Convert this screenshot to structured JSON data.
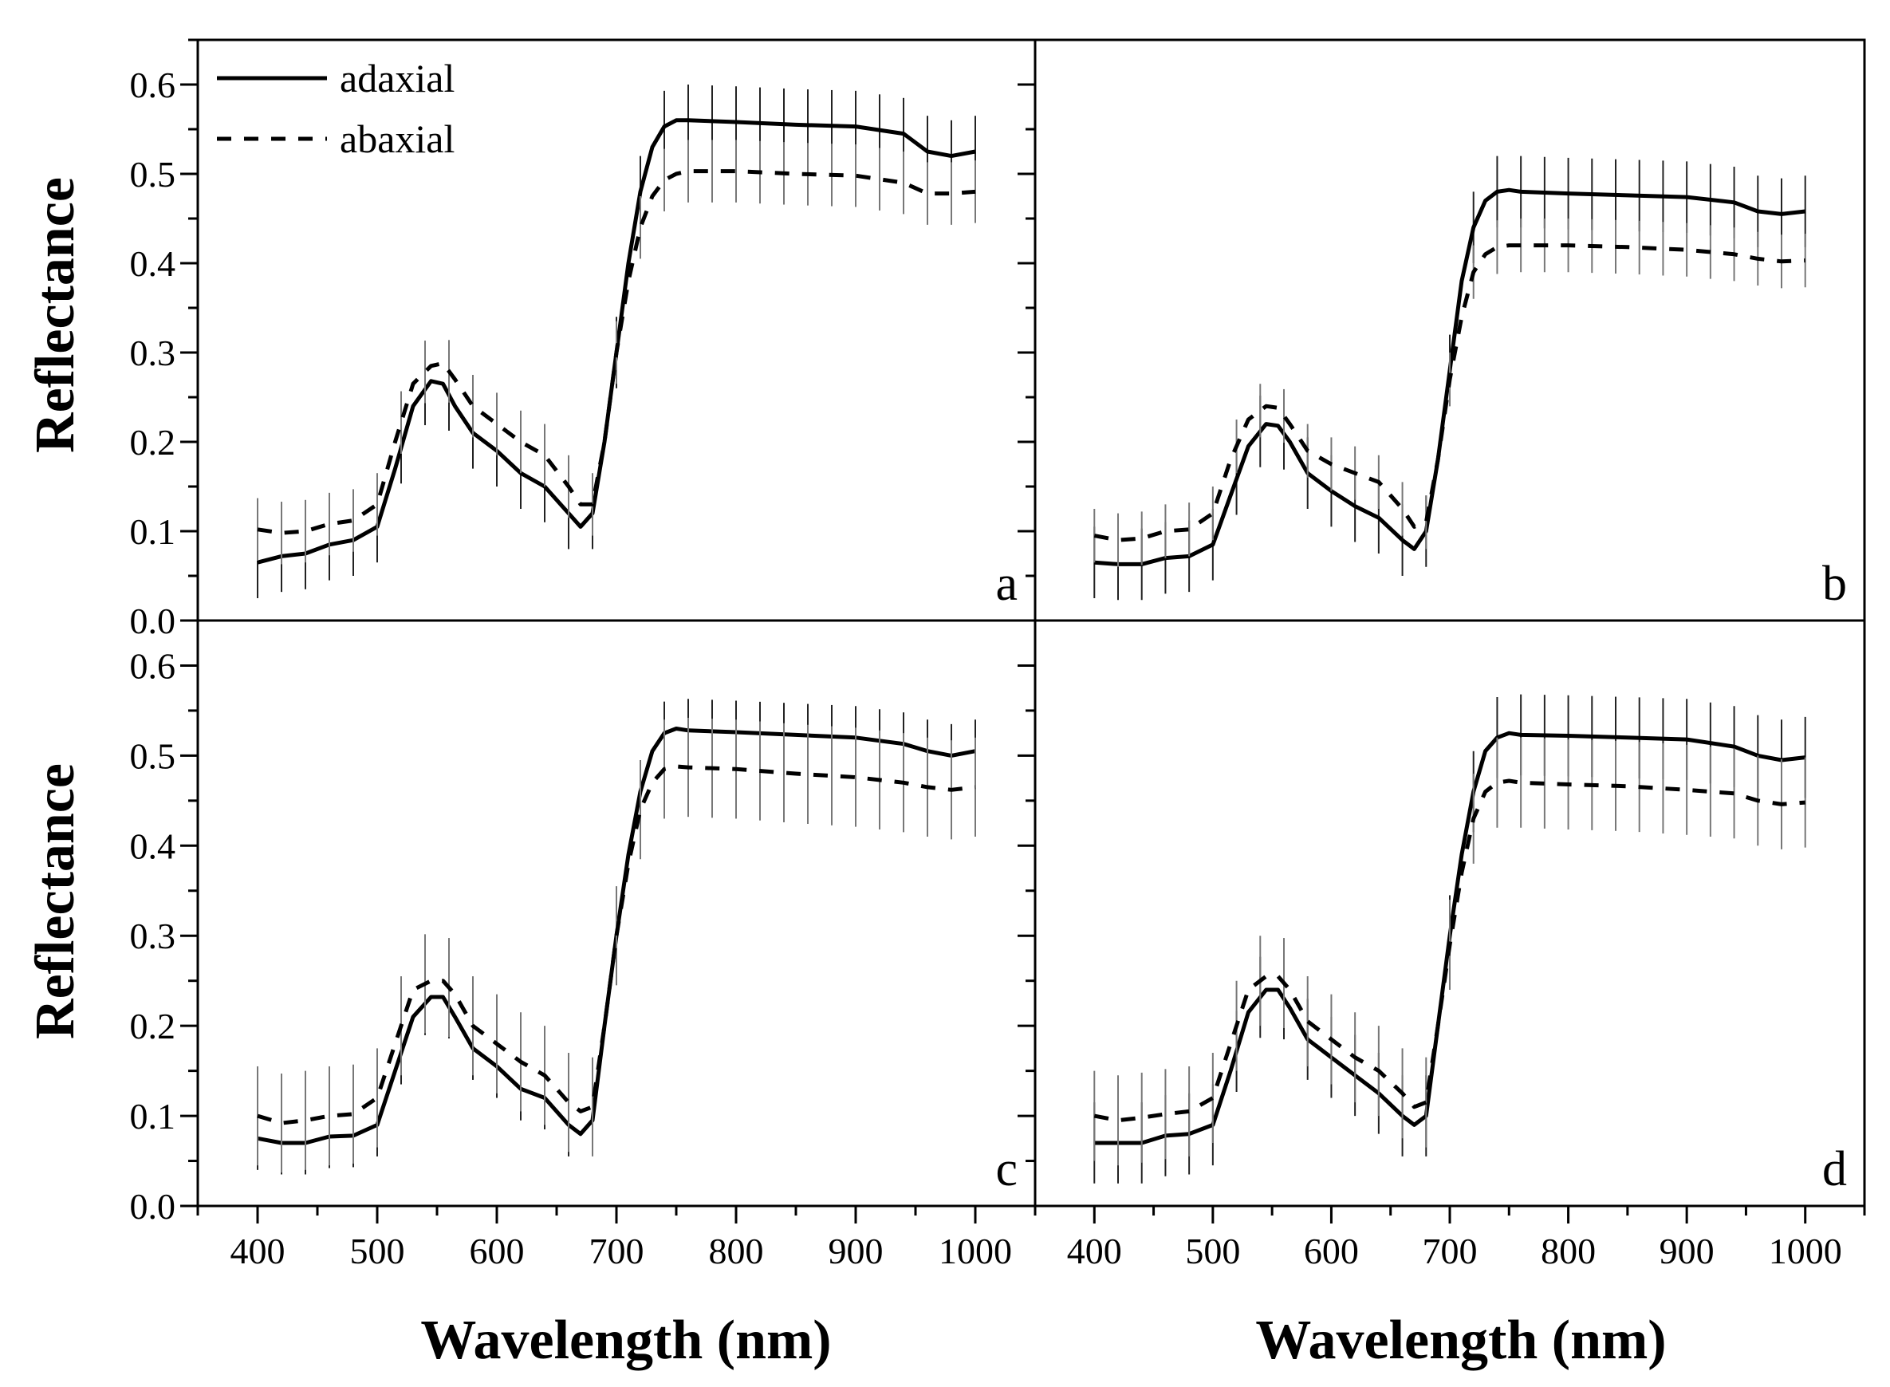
{
  "chart_data": {
    "type": "line",
    "xlabel": "Wavelength (nm)",
    "ylabel": "Reflectance",
    "xlim": [
      350,
      1050
    ],
    "ylim": [
      0,
      0.65
    ],
    "xticks": [
      400,
      500,
      600,
      700,
      800,
      900,
      1000
    ],
    "yticks": [
      0.0,
      0.1,
      0.2,
      0.3,
      0.4,
      0.5,
      0.6
    ],
    "ytick_labels": [
      "0.0",
      "0.1",
      "0.2",
      "0.3",
      "0.4",
      "0.5",
      "0.6"
    ],
    "grid": false,
    "legend": {
      "position": "top-left of panel a",
      "entries": [
        {
          "label": "adaxial",
          "style": "solid"
        },
        {
          "label": "abaxial",
          "style": "dashed"
        }
      ]
    },
    "error_bar_x": [
      400,
      420,
      440,
      460,
      480,
      500,
      520,
      540,
      560,
      580,
      600,
      620,
      640,
      660,
      680,
      700,
      720,
      740,
      760,
      780,
      800,
      820,
      840,
      860,
      880,
      900,
      920,
      940,
      960,
      980,
      1000
    ],
    "panels": [
      {
        "letter": "a",
        "series": [
          {
            "name": "adaxial",
            "style": "solid",
            "x": [
              400,
              420,
              440,
              460,
              480,
              500,
              515,
              530,
              545,
              555,
              565,
              580,
              600,
              620,
              640,
              660,
              670,
              680,
              690,
              700,
              710,
              720,
              730,
              740,
              750,
              760,
              800,
              850,
              900,
              940,
              960,
              980,
              1000
            ],
            "y": [
              0.065,
              0.072,
              0.075,
              0.085,
              0.09,
              0.105,
              0.17,
              0.24,
              0.268,
              0.265,
              0.24,
              0.21,
              0.19,
              0.165,
              0.15,
              0.12,
              0.105,
              0.12,
              0.2,
              0.3,
              0.4,
              0.48,
              0.53,
              0.553,
              0.56,
              0.56,
              0.558,
              0.555,
              0.553,
              0.545,
              0.525,
              0.52,
              0.525
            ],
            "error": 0.04
          },
          {
            "name": "abaxial",
            "style": "dashed",
            "x": [
              400,
              420,
              440,
              460,
              480,
              500,
              515,
              530,
              545,
              555,
              565,
              580,
              600,
              620,
              640,
              660,
              670,
              680,
              690,
              700,
              710,
              720,
              730,
              740,
              750,
              760,
              800,
              850,
              900,
              940,
              960,
              980,
              1000
            ],
            "y": [
              0.102,
              0.098,
              0.1,
              0.108,
              0.112,
              0.13,
              0.2,
              0.265,
              0.285,
              0.288,
              0.27,
              0.24,
              0.22,
              0.2,
              0.185,
              0.15,
              0.13,
              0.13,
              0.2,
              0.3,
              0.38,
              0.44,
              0.475,
              0.493,
              0.5,
              0.503,
              0.503,
              0.5,
              0.498,
              0.49,
              0.478,
              0.478,
              0.48
            ],
            "error": 0.035
          }
        ]
      },
      {
        "letter": "b",
        "series": [
          {
            "name": "adaxial",
            "style": "solid",
            "x": [
              400,
              420,
              440,
              460,
              480,
              500,
              515,
              530,
              545,
              555,
              565,
              580,
              600,
              620,
              640,
              660,
              670,
              680,
              690,
              700,
              710,
              720,
              730,
              740,
              750,
              760,
              800,
              850,
              900,
              940,
              960,
              980,
              1000
            ],
            "y": [
              0.065,
              0.063,
              0.063,
              0.07,
              0.072,
              0.085,
              0.14,
              0.195,
              0.22,
              0.218,
              0.2,
              0.165,
              0.145,
              0.128,
              0.115,
              0.09,
              0.08,
              0.1,
              0.18,
              0.28,
              0.38,
              0.44,
              0.47,
              0.48,
              0.482,
              0.48,
              0.478,
              0.476,
              0.474,
              0.468,
              0.458,
              0.455,
              0.458
            ],
            "error": 0.04
          },
          {
            "name": "abaxial",
            "style": "dashed",
            "x": [
              400,
              420,
              440,
              460,
              480,
              500,
              515,
              530,
              545,
              555,
              565,
              580,
              600,
              620,
              640,
              660,
              670,
              680,
              690,
              700,
              710,
              720,
              730,
              740,
              750,
              760,
              800,
              850,
              900,
              940,
              960,
              980,
              1000
            ],
            "y": [
              0.095,
              0.09,
              0.092,
              0.1,
              0.102,
              0.12,
              0.18,
              0.225,
              0.24,
              0.238,
              0.22,
              0.19,
              0.175,
              0.165,
              0.155,
              0.125,
              0.105,
              0.11,
              0.18,
              0.27,
              0.34,
              0.39,
              0.41,
              0.418,
              0.42,
              0.42,
              0.42,
              0.418,
              0.415,
              0.41,
              0.405,
              0.402,
              0.403
            ],
            "error": 0.03
          }
        ]
      },
      {
        "letter": "c",
        "series": [
          {
            "name": "adaxial",
            "style": "solid",
            "x": [
              400,
              420,
              440,
              460,
              480,
              500,
              515,
              530,
              545,
              555,
              565,
              580,
              600,
              620,
              640,
              660,
              670,
              680,
              690,
              700,
              710,
              720,
              730,
              740,
              750,
              760,
              800,
              850,
              900,
              940,
              960,
              980,
              1000
            ],
            "y": [
              0.075,
              0.07,
              0.07,
              0.077,
              0.078,
              0.09,
              0.15,
              0.21,
              0.232,
              0.232,
              0.21,
              0.175,
              0.155,
              0.13,
              0.12,
              0.09,
              0.08,
              0.095,
              0.2,
              0.3,
              0.39,
              0.46,
              0.505,
              0.525,
              0.53,
              0.528,
              0.526,
              0.523,
              0.52,
              0.513,
              0.505,
              0.5,
              0.505
            ],
            "error": 0.035
          },
          {
            "name": "abaxial",
            "style": "dashed",
            "x": [
              400,
              420,
              440,
              460,
              480,
              500,
              515,
              530,
              545,
              555,
              565,
              580,
              600,
              620,
              640,
              660,
              670,
              680,
              690,
              700,
              710,
              720,
              730,
              740,
              750,
              760,
              800,
              850,
              900,
              940,
              960,
              980,
              1000
            ],
            "y": [
              0.1,
              0.092,
              0.095,
              0.1,
              0.102,
              0.12,
              0.18,
              0.24,
              0.25,
              0.25,
              0.235,
              0.2,
              0.18,
              0.16,
              0.145,
              0.115,
              0.105,
              0.11,
              0.2,
              0.3,
              0.38,
              0.44,
              0.47,
              0.485,
              0.488,
              0.487,
              0.485,
              0.48,
              0.476,
              0.47,
              0.465,
              0.462,
              0.465
            ],
            "error": 0.055
          }
        ]
      },
      {
        "letter": "d",
        "series": [
          {
            "name": "adaxial",
            "style": "solid",
            "x": [
              400,
              420,
              440,
              460,
              480,
              500,
              515,
              530,
              545,
              555,
              565,
              580,
              600,
              620,
              640,
              660,
              670,
              680,
              690,
              700,
              710,
              720,
              730,
              740,
              750,
              760,
              800,
              850,
              900,
              940,
              960,
              980,
              1000
            ],
            "y": [
              0.07,
              0.07,
              0.07,
              0.078,
              0.08,
              0.09,
              0.15,
              0.215,
              0.24,
              0.24,
              0.22,
              0.185,
              0.165,
              0.145,
              0.125,
              0.1,
              0.09,
              0.1,
              0.2,
              0.3,
              0.39,
              0.46,
              0.505,
              0.52,
              0.525,
              0.523,
              0.522,
              0.52,
              0.518,
              0.51,
              0.5,
              0.495,
              0.498
            ],
            "error": 0.045
          },
          {
            "name": "abaxial",
            "style": "dashed",
            "x": [
              400,
              420,
              440,
              460,
              480,
              500,
              515,
              530,
              545,
              555,
              565,
              580,
              600,
              620,
              640,
              660,
              670,
              680,
              690,
              700,
              710,
              720,
              730,
              740,
              750,
              760,
              800,
              850,
              900,
              940,
              960,
              980,
              1000
            ],
            "y": [
              0.1,
              0.095,
              0.098,
              0.102,
              0.105,
              0.12,
              0.18,
              0.24,
              0.255,
              0.255,
              0.24,
              0.205,
              0.185,
              0.165,
              0.15,
              0.125,
              0.11,
              0.115,
              0.2,
              0.29,
              0.37,
              0.43,
              0.46,
              0.47,
              0.472,
              0.47,
              0.468,
              0.466,
              0.462,
              0.458,
              0.45,
              0.446,
              0.448
            ],
            "error": 0.05
          }
        ]
      }
    ]
  }
}
